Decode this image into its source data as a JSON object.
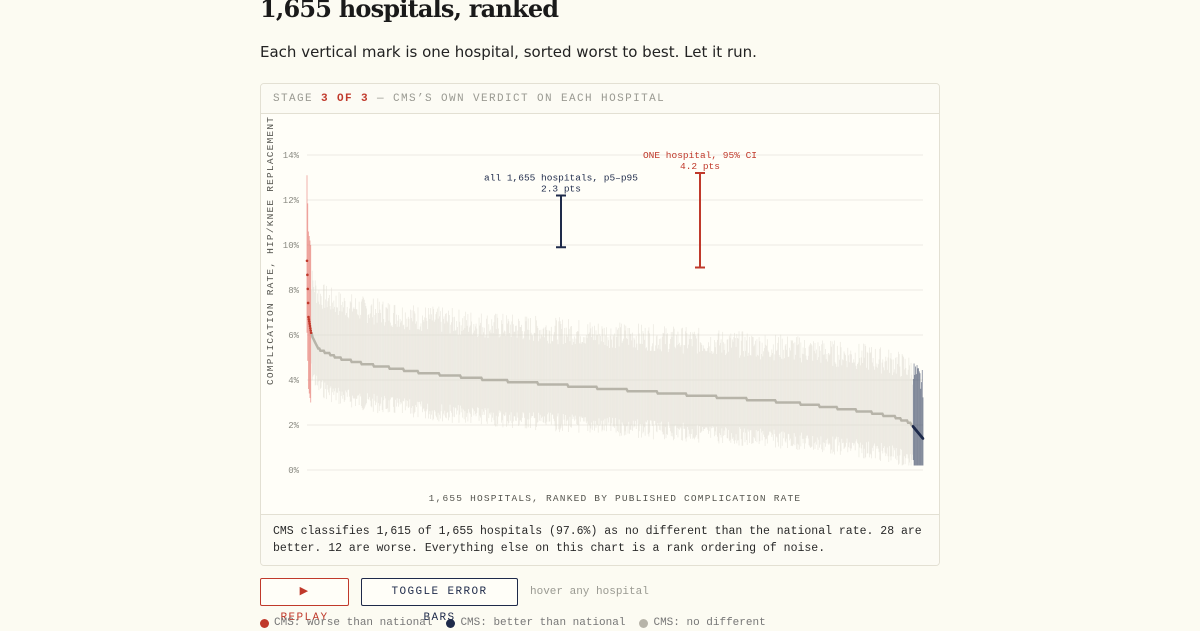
{
  "header": {
    "title": "1,655 hospitals, ranked",
    "subtitle": "Each vertical mark is one hospital, sorted worst to best. Let it run."
  },
  "stage": {
    "prefix": "STAGE ",
    "current": "3 OF 3",
    "suffix": " — CMS’S OWN VERDICT ON EACH HOSPITAL"
  },
  "chart_data": {
    "type": "scatter",
    "ylabel": "COMPLICATION RATE, HIP/KNEE REPLACEMENT",
    "xlabel": "1,655 HOSPITALS, RANKED BY PUBLISHED COMPLICATION RATE",
    "ylim": [
      0,
      14
    ],
    "y_ticks": [
      {
        "value": 0,
        "label": "0%"
      },
      {
        "value": 2,
        "label": "2%"
      },
      {
        "value": 4,
        "label": "4%"
      },
      {
        "value": 6,
        "label": "6%"
      },
      {
        "value": 8,
        "label": "8%"
      },
      {
        "value": 10,
        "label": "10%"
      },
      {
        "value": 12,
        "label": "12%"
      },
      {
        "value": 14,
        "label": "14%"
      }
    ],
    "grid": true,
    "n_hospitals": 1655,
    "series": [
      {
        "name": "CMS: worse than national",
        "count": 12,
        "color": "#c0392b"
      },
      {
        "name": "CMS: better than national",
        "count": 28,
        "color": "#1e2a4a"
      },
      {
        "name": "CMS: no different",
        "count": 1615,
        "color": "#b7b4a9"
      }
    ],
    "rate_curve": [
      {
        "rank": 1,
        "rate": 9.3
      },
      {
        "rank": 5,
        "rate": 6.8
      },
      {
        "rank": 12,
        "rate": 6.1
      },
      {
        "rank": 30,
        "rate": 5.4
      },
      {
        "rank": 80,
        "rate": 5.0
      },
      {
        "rank": 160,
        "rate": 4.7
      },
      {
        "rank": 300,
        "rate": 4.35
      },
      {
        "rank": 500,
        "rate": 4.0
      },
      {
        "rank": 700,
        "rate": 3.75
      },
      {
        "rank": 900,
        "rate": 3.5
      },
      {
        "rank": 1100,
        "rate": 3.25
      },
      {
        "rank": 1300,
        "rate": 3.0
      },
      {
        "rank": 1500,
        "rate": 2.6
      },
      {
        "rank": 1580,
        "rate": 2.35
      },
      {
        "rank": 1620,
        "rate": 2.1
      },
      {
        "rank": 1655,
        "rate": 1.4
      }
    ],
    "ci_band_half_width_pts": 2.1,
    "annotations": [
      {
        "label_line1": "all 1,655 hospitals, p5–p95",
        "label_line2": "2.3 pts",
        "low": 9.9,
        "high": 12.2,
        "color": "#1e2a4a"
      },
      {
        "label_line1": "ONE hospital, 95% CI",
        "label_line2": "4.2 pts",
        "low": 9.0,
        "high": 13.2,
        "color": "#c0392b"
      }
    ]
  },
  "caption": "CMS classifies 1,615 of 1,655 hospitals (97.6%) as no different than the national rate. 28 are better. 12 are worse. Everything else on this chart is a rank ordering of noise.",
  "controls": {
    "replay_label": "▶ REPLAY",
    "toggle_label": "TOGGLE ERROR BARS",
    "hover_hint": "hover any hospital"
  },
  "legend": [
    {
      "label": "CMS: worse than national",
      "color": "#c0392b"
    },
    {
      "label": "CMS: better than national",
      "color": "#1e2a4a"
    },
    {
      "label": "CMS: no different",
      "color": "#b7b4a9"
    }
  ]
}
